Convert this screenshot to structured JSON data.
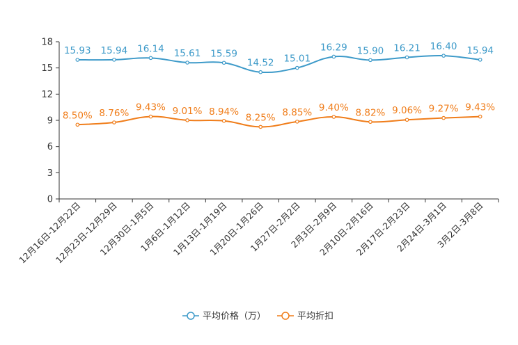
{
  "chart_data": {
    "type": "line",
    "title": "",
    "xlabel": "",
    "ylabel": "",
    "ylim": [
      0,
      18
    ],
    "yticks": [
      0,
      3,
      6,
      9,
      12,
      15,
      18
    ],
    "grid": false,
    "legend_position": "bottom",
    "categories": [
      "12月16日-12月22日",
      "12月23日-12月29日",
      "12月30日-1月5日",
      "1月6日-1月12日",
      "1月13日-1月19日",
      "1月20日-1月26日",
      "1月27日-2月2日",
      "2月3日-2月9日",
      "2月10日-2月16日",
      "2月17日-2月23日",
      "2月24日-3月1日",
      "3月2日-3月8日"
    ],
    "series": [
      {
        "name": "平均价格（万）",
        "color": "#3d9ac9",
        "values": [
          15.93,
          15.94,
          16.14,
          15.61,
          15.59,
          14.52,
          15.01,
          16.29,
          15.9,
          16.21,
          16.4,
          15.94
        ],
        "labels": [
          "15.93",
          "15.94",
          "16.14",
          "15.61",
          "15.59",
          "14.52",
          "15.01",
          "16.29",
          "15.90",
          "16.21",
          "16.40",
          "15.94"
        ]
      },
      {
        "name": "平均折扣",
        "color": "#f07d1a",
        "values": [
          8.5,
          8.76,
          9.43,
          9.01,
          8.94,
          8.25,
          8.85,
          9.4,
          8.82,
          9.06,
          9.27,
          9.43
        ],
        "labels": [
          "8.50%",
          "8.76%",
          "9.43%",
          "9.01%",
          "8.94%",
          "8.25%",
          "8.85%",
          "9.40%",
          "8.82%",
          "9.06%",
          "9.27%",
          "9.43%"
        ]
      }
    ]
  }
}
